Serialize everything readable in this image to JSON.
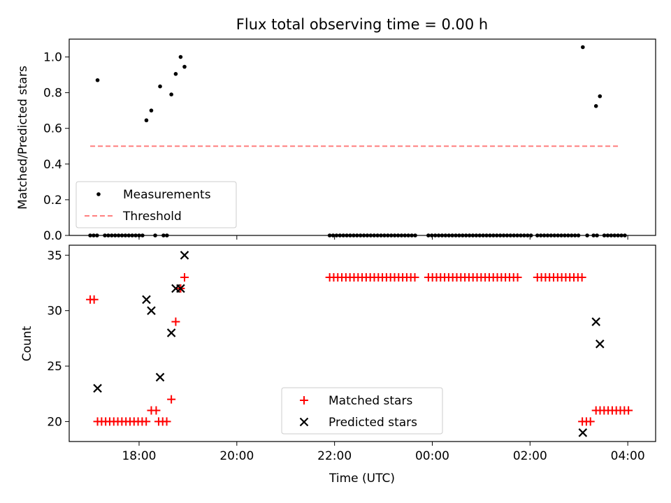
{
  "chart_data": {
    "type": "scatter",
    "title": "Flux total observing time = 0.00 h",
    "xlabel": "Time (UTC)",
    "x_ticks": [
      "18:00",
      "20:00",
      "22:00",
      "00:00",
      "02:00",
      "04:00"
    ],
    "x_range_hours": [
      16.57,
      28.57
    ],
    "panels": [
      {
        "id": "ratio",
        "ylabel": "Matched/Predicted stars",
        "ylim": [
          0,
          1.1
        ],
        "y_ticks": [
          "0.0",
          "0.2",
          "0.4",
          "0.6",
          "0.8",
          "1.0"
        ],
        "legend": {
          "placement": "lower-left",
          "entries": [
            "Measurements",
            "Threshold"
          ]
        },
        "threshold": {
          "name": "Threshold",
          "value": 0.5,
          "x_range": [
            17.0,
            27.85
          ],
          "color": "#ff7f7f",
          "style": "dashed"
        },
        "series": [
          {
            "name": "Measurements",
            "marker": "dot",
            "color": "#000000",
            "points": [
              [
                17.15,
                0.87
              ],
              [
                18.15,
                0.645
              ],
              [
                18.25,
                0.7
              ],
              [
                18.43,
                0.835
              ],
              [
                18.66,
                0.79
              ],
              [
                18.75,
                0.905
              ],
              [
                18.85,
                1.0
              ],
              [
                18.93,
                0.945
              ],
              [
                27.08,
                1.055
              ],
              [
                27.35,
                0.725
              ],
              [
                27.43,
                0.78
              ]
            ],
            "zero_ranges": [
              [
                17.0,
                17.15
              ],
              [
                17.3,
                18.13
              ],
              [
                18.33,
                18.36
              ],
              [
                18.5,
                18.62
              ],
              [
                21.9,
                23.7
              ],
              [
                23.92,
                26.05
              ],
              [
                26.15,
                26.99
              ],
              [
                27.17,
                27.2
              ],
              [
                27.3,
                27.37
              ],
              [
                27.52,
                28.0
              ]
            ]
          }
        ]
      },
      {
        "id": "counts",
        "ylabel": "Count",
        "ylim": [
          18.2,
          35.9
        ],
        "y_ticks": [
          "20",
          "25",
          "30",
          "35"
        ],
        "legend": {
          "placement": "lower-center",
          "entries": [
            "Matched stars",
            "Predicted stars"
          ]
        },
        "series": [
          {
            "name": "Matched stars",
            "marker": "plus",
            "color": "#ff0000",
            "points": [
              [
                17.0,
                31
              ],
              [
                17.08,
                31
              ],
              [
                18.25,
                21
              ],
              [
                18.35,
                21
              ],
              [
                18.66,
                22
              ],
              [
                18.75,
                29
              ],
              [
                18.85,
                32
              ],
              [
                18.93,
                33
              ]
            ],
            "ranges": [
              {
                "from": 17.15,
                "to": 18.15,
                "y": 20
              },
              {
                "from": 18.4,
                "to": 18.6,
                "y": 20
              },
              {
                "from": 21.9,
                "to": 23.7,
                "y": 33
              },
              {
                "from": 23.92,
                "to": 25.75,
                "y": 33
              },
              {
                "from": 26.15,
                "to": 27.12,
                "y": 33
              },
              {
                "from": 27.07,
                "to": 27.3,
                "y": 20
              },
              {
                "from": 27.35,
                "to": 28.05,
                "y": 21
              }
            ]
          },
          {
            "name": "Predicted stars",
            "marker": "x",
            "color": "#000000",
            "points": [
              [
                17.15,
                23
              ],
              [
                18.15,
                31
              ],
              [
                18.25,
                30
              ],
              [
                18.43,
                24
              ],
              [
                18.66,
                28
              ],
              [
                18.75,
                32
              ],
              [
                18.85,
                32
              ],
              [
                18.93,
                35
              ],
              [
                27.08,
                19
              ],
              [
                27.35,
                29
              ],
              [
                27.43,
                27
              ]
            ]
          }
        ]
      }
    ]
  }
}
